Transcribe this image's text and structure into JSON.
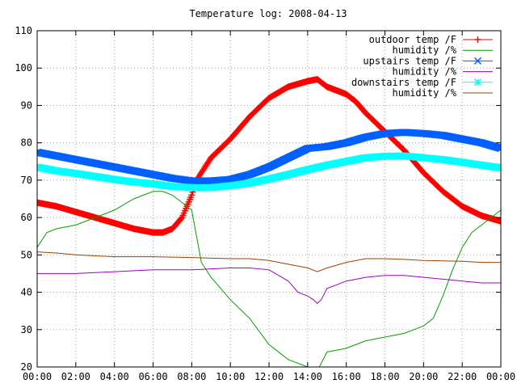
{
  "chart_data": {
    "type": "line",
    "title": "Temperature log: 2008-04-13",
    "xlabel": "",
    "ylabel": "",
    "xlim": [
      0,
      24
    ],
    "ylim": [
      20,
      110
    ],
    "x_ticks": [
      "00:00",
      "02:00",
      "04:00",
      "06:00",
      "08:00",
      "10:00",
      "12:00",
      "14:00",
      "16:00",
      "18:00",
      "20:00",
      "22:00",
      "00:00"
    ],
    "x_tick_hours": [
      0,
      2,
      4,
      6,
      8,
      10,
      12,
      14,
      16,
      18,
      20,
      22,
      24
    ],
    "y_ticks": [
      20,
      30,
      40,
      50,
      60,
      70,
      80,
      90,
      100,
      110
    ],
    "grid": true,
    "legend_position": "top-right",
    "series": [
      {
        "name": "outdoor temp /F",
        "color": "#ff0000",
        "marker": "plus",
        "x": [
          0,
          1,
          2,
          3,
          4,
          5,
          6,
          6.5,
          7,
          7.5,
          8,
          8.25,
          8.5,
          9,
          10,
          11,
          12,
          13,
          14,
          14.5,
          15,
          15.5,
          16,
          16.5,
          17,
          18,
          19,
          20,
          21,
          22,
          23,
          24
        ],
        "y": [
          64,
          63,
          61.5,
          60,
          58.5,
          57,
          56,
          56,
          57,
          60,
          66,
          70,
          72,
          76,
          81,
          87,
          92,
          95,
          96.5,
          97,
          95,
          94,
          93,
          91,
          88,
          83,
          78,
          72,
          67,
          63,
          60.5,
          59
        ]
      },
      {
        "name": "humidity /%",
        "color": "#00a000",
        "marker": "line",
        "x": [
          0,
          0.5,
          1,
          2,
          3,
          4,
          5,
          6,
          6.5,
          7,
          7.5,
          8,
          8.5,
          9,
          10,
          11,
          12,
          13,
          14,
          14.2,
          14.4,
          14.5,
          14.6,
          15,
          16,
          17,
          18,
          19,
          20,
          20.5,
          21,
          21.5,
          22,
          22.5,
          23,
          23.5,
          24
        ],
        "y": [
          52,
          56,
          57,
          58,
          60,
          62,
          65,
          67,
          67,
          66,
          64,
          62,
          48,
          44,
          38,
          33,
          26,
          22,
          20,
          20,
          18,
          17,
          20,
          24,
          25,
          27,
          28,
          29,
          31,
          33,
          39,
          46,
          52,
          56,
          58,
          60,
          62
        ]
      },
      {
        "name": "upstairs temp /F",
        "color": "#0060ff",
        "marker": "cross",
        "x": [
          0,
          1,
          2,
          3,
          4,
          5,
          6,
          7,
          8,
          9,
          10,
          11,
          12,
          13,
          14,
          15,
          16,
          17,
          18,
          19,
          20,
          21,
          22,
          23,
          24
        ],
        "y": [
          77.5,
          76.5,
          75.5,
          74.5,
          73.5,
          72.5,
          71.5,
          70.5,
          69.8,
          69.8,
          70.2,
          71.5,
          73.5,
          76,
          78.5,
          79,
          80,
          81.5,
          82.5,
          82.8,
          82.5,
          82,
          81,
          80,
          78.5
        ]
      },
      {
        "name": "humidity /%",
        "color": "#a000c0",
        "marker": "line",
        "x": [
          0,
          2,
          4,
          6,
          8,
          10,
          11,
          12,
          13,
          13.5,
          14,
          14.3,
          14.5,
          14.7,
          15,
          16,
          17,
          18,
          19,
          20,
          21,
          22,
          23,
          24
        ],
        "y": [
          45,
          45,
          45.5,
          46,
          46,
          46.5,
          46.5,
          46,
          43,
          40,
          39,
          38,
          37,
          38,
          41,
          43,
          44,
          44.5,
          44.5,
          44,
          43.5,
          43,
          42.5,
          42.5
        ]
      },
      {
        "name": "downstairs temp /F",
        "color": "#00ffff",
        "marker": "star",
        "x": [
          0,
          1,
          2,
          3,
          4,
          5,
          6,
          7,
          8,
          9,
          10,
          11,
          12,
          13,
          14,
          15,
          16,
          17,
          18,
          19,
          20,
          21,
          22,
          23,
          24
        ],
        "y": [
          73.5,
          72.5,
          71.8,
          71,
          70.2,
          69.5,
          69,
          68.3,
          68,
          68,
          68.5,
          69.2,
          70.3,
          71.5,
          72.8,
          74,
          75,
          76,
          76.4,
          76.5,
          76,
          75.5,
          74.8,
          74,
          73.3
        ]
      },
      {
        "name": "humidity /%",
        "color": "#a04000",
        "marker": "line",
        "x": [
          0,
          1,
          2,
          4,
          6,
          8,
          10,
          11,
          12,
          13,
          14,
          14.5,
          15,
          16,
          17,
          18,
          19,
          20,
          22,
          23,
          24
        ],
        "y": [
          50.8,
          50.5,
          50,
          49.5,
          49.5,
          49.3,
          49,
          49,
          48.5,
          47.5,
          46.5,
          45.5,
          46.5,
          48,
          49,
          49,
          48.8,
          48.5,
          48.3,
          48,
          48
        ]
      }
    ]
  }
}
